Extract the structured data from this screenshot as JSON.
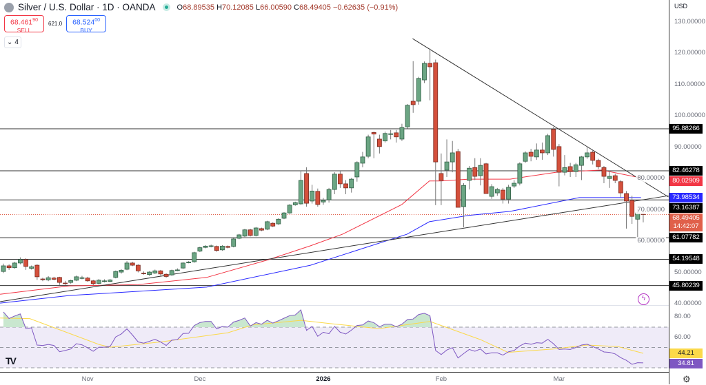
{
  "header": {
    "title": "Silver / U.S. Dollar · 1D · OANDA",
    "o_label": "O",
    "o": "68.89535",
    "h_label": "H",
    "h": "70.12085",
    "l_label": "L",
    "l": "66.00590",
    "c_label": "C",
    "c": "68.49405",
    "change": "−0.62635 (−0.91%)"
  },
  "trade": {
    "sell_price": "68.461",
    "sell_sup": "9",
    "sell_sup2": "0",
    "sell_label": "SELL",
    "spread": "621.0",
    "buy_price": "68.524",
    "buy_sup": "0",
    "buy_sup2": "0",
    "buy_label": "BUY"
  },
  "indicators_toggle": {
    "icon": "chevron-down-icon",
    "count": "4"
  },
  "currency": "USD",
  "colors": {
    "up": "#6ba583",
    "down": "#d4503c",
    "ma_fast": "#f23645",
    "ma_slow": "#2929ff",
    "rsi": "#7e57c2",
    "rsi_ma": "#fbd94a",
    "current": "#e0604a"
  },
  "chart_data": {
    "type": "candlestick",
    "symbol": "Silver / U.S. Dollar",
    "price_ticks": [
      "130.00000",
      "120.00000",
      "110.00000",
      "100.00000",
      "90.00000",
      "80.00000",
      "70.00000",
      "60.00000",
      "50.00000",
      "40.00000"
    ],
    "price_tick_values": [
      130,
      120,
      110,
      100,
      90,
      80,
      70,
      60,
      50,
      40
    ],
    "ylim": [
      40,
      130
    ],
    "time_labels": [
      {
        "label": "Nov",
        "index": 15
      },
      {
        "label": "Dec",
        "index": 35
      },
      {
        "label": "2026",
        "index": 57,
        "bold": true
      },
      {
        "label": "Feb",
        "index": 78
      },
      {
        "label": "Mar",
        "index": 99
      }
    ],
    "candles": [
      [
        50.3,
        52.8,
        49.8,
        52.1
      ],
      [
        52.1,
        52.6,
        50.8,
        51.5
      ],
      [
        51.5,
        53.4,
        51.2,
        53.0
      ],
      [
        53.0,
        54.8,
        52.6,
        54.1
      ],
      [
        54.1,
        54.5,
        50.8,
        51.9
      ],
      [
        51.3,
        52.2,
        50.9,
        51.8
      ],
      [
        52.3,
        52.6,
        47.6,
        48.6
      ],
      [
        47.9,
        48.3,
        47.2,
        47.8
      ],
      [
        47.6,
        48.8,
        47.2,
        48.3
      ],
      [
        48.2,
        48.6,
        47.5,
        47.8
      ],
      [
        48.4,
        48.6,
        46.0,
        46.8
      ],
      [
        46.6,
        47.3,
        46.0,
        46.5
      ],
      [
        46.8,
        47.7,
        46.4,
        47.4
      ],
      [
        47.5,
        49.0,
        47.2,
        48.6
      ],
      [
        48.2,
        48.9,
        47.8,
        48.3
      ],
      [
        48.2,
        48.6,
        47.0,
        47.3
      ],
      [
        47.3,
        47.6,
        45.9,
        46.4
      ],
      [
        46.5,
        47.9,
        46.2,
        47.5
      ],
      [
        47.2,
        47.8,
        46.8,
        47.3
      ],
      [
        47.1,
        47.9,
        46.9,
        47.6
      ],
      [
        48.4,
        50.6,
        48.1,
        50.3
      ],
      [
        50.1,
        51.0,
        49.6,
        50.7
      ],
      [
        51.0,
        53.6,
        50.7,
        53.0
      ],
      [
        53.0,
        53.4,
        52.0,
        52.3
      ],
      [
        52.3,
        52.6,
        50.0,
        50.5
      ],
      [
        49.8,
        50.3,
        49.3,
        49.7
      ],
      [
        49.3,
        50.4,
        48.9,
        50.1
      ],
      [
        49.8,
        50.9,
        49.5,
        50.5
      ],
      [
        50.5,
        50.8,
        49.0,
        49.5
      ],
      [
        49.4,
        49.7,
        48.3,
        48.7
      ],
      [
        49.2,
        50.9,
        48.9,
        50.6
      ],
      [
        50.7,
        51.3,
        50.4,
        50.8
      ],
      [
        51.4,
        53.3,
        51.1,
        53.0
      ],
      [
        53.2,
        53.6,
        52.9,
        53.3
      ],
      [
        53.4,
        56.6,
        53.1,
        56.3
      ],
      [
        56.8,
        58.2,
        56.5,
        57.9
      ],
      [
        58.0,
        58.7,
        57.7,
        58.4
      ],
      [
        58.4,
        58.9,
        58.0,
        58.5
      ],
      [
        58.3,
        58.6,
        56.6,
        57.0
      ],
      [
        57.2,
        58.7,
        56.9,
        58.4
      ],
      [
        58.3,
        58.6,
        57.7,
        58.0
      ],
      [
        58.3,
        61.0,
        58.0,
        60.7
      ],
      [
        60.9,
        62.3,
        60.6,
        62.0
      ],
      [
        61.6,
        63.9,
        61.3,
        63.6
      ],
      [
        63.6,
        63.9,
        61.5,
        61.8
      ],
      [
        61.8,
        64.5,
        61.5,
        64.2
      ],
      [
        64.0,
        64.3,
        63.2,
        63.5
      ],
      [
        63.8,
        66.5,
        63.5,
        66.2
      ],
      [
        65.7,
        66.0,
        64.5,
        64.8
      ],
      [
        65.5,
        67.3,
        65.2,
        67.0
      ],
      [
        67.3,
        69.3,
        67.0,
        69.0
      ],
      [
        69.0,
        71.8,
        68.7,
        71.5
      ],
      [
        71.6,
        72.6,
        71.3,
        72.3
      ],
      [
        71.9,
        82.5,
        71.6,
        79.4
      ],
      [
        81.6,
        83.6,
        71.0,
        72.1
      ],
      [
        72.8,
        78.0,
        72.0,
        76.0
      ],
      [
        75.9,
        76.8,
        71.0,
        71.7
      ],
      [
        72.5,
        73.8,
        71.6,
        73.0
      ],
      [
        73.2,
        77.0,
        72.3,
        76.5
      ],
      [
        76.5,
        82.0,
        75.0,
        81.4
      ],
      [
        81.4,
        82.3,
        77.0,
        78.3
      ],
      [
        78.3,
        79.5,
        75.0,
        77.0
      ],
      [
        77.0,
        80.2,
        75.5,
        79.8
      ],
      [
        80.5,
        85.5,
        79.0,
        85.1
      ],
      [
        84.9,
        88.5,
        83.6,
        86.9
      ],
      [
        87.1,
        94.0,
        86.5,
        93.3
      ],
      [
        94.7,
        95.0,
        86.5,
        94.2
      ],
      [
        92.6,
        94.0,
        88.0,
        90.2
      ],
      [
        92.0,
        95.0,
        91.5,
        94.4
      ],
      [
        94.2,
        95.5,
        92.5,
        94.3
      ],
      [
        94.6,
        95.5,
        91.5,
        93.3
      ],
      [
        92.6,
        97.5,
        92.0,
        96.3
      ],
      [
        96.5,
        103.8,
        96.0,
        103.4
      ],
      [
        104.7,
        117.5,
        101.0,
        103.6
      ],
      [
        104.7,
        112.5,
        103.6,
        112.0
      ],
      [
        111.5,
        117.4,
        110.5,
        116.8
      ],
      [
        116.8,
        121.5,
        105.0,
        115.7
      ],
      [
        117.0,
        118.0,
        71.5,
        85.3
      ],
      [
        81.6,
        88.0,
        71.5,
        79.4
      ],
      [
        82.7,
        92.5,
        80.5,
        85.3
      ],
      [
        85.3,
        92.0,
        82.0,
        88.2
      ],
      [
        88.6,
        89.5,
        70.8,
        70.8
      ],
      [
        71.0,
        78.5,
        64.4,
        77.8
      ],
      [
        79.4,
        84.0,
        76.5,
        83.3
      ],
      [
        83.5,
        86.5,
        79.5,
        80.7
      ],
      [
        80.9,
        86.5,
        77.8,
        84.2
      ],
      [
        84.7,
        85.0,
        75.2,
        75.2
      ],
      [
        74.3,
        78.2,
        73.5,
        77.4
      ],
      [
        75.4,
        77.0,
        74.5,
        76.5
      ],
      [
        76.3,
        77.0,
        72.0,
        73.4
      ],
      [
        73.4,
        78.0,
        72.0,
        77.2
      ],
      [
        77.6,
        79.5,
        77.0,
        78.5
      ],
      [
        78.5,
        85.2,
        77.8,
        84.7
      ],
      [
        85.5,
        88.7,
        85.0,
        88.2
      ],
      [
        88.4,
        89.5,
        85.5,
        87.1
      ],
      [
        86.9,
        91.2,
        86.0,
        89.1
      ],
      [
        89.1,
        91.5,
        86.0,
        88.2
      ],
      [
        88.2,
        94.3,
        87.5,
        93.7
      ],
      [
        95.7,
        96.5,
        87.0,
        89.3
      ],
      [
        90.2,
        91.0,
        77.5,
        82.0
      ],
      [
        82.0,
        87.5,
        81.0,
        83.5
      ],
      [
        83.8,
        85.0,
        80.5,
        82.2
      ],
      [
        82.2,
        85.0,
        80.5,
        84.4
      ],
      [
        84.2,
        87.2,
        79.5,
        86.9
      ],
      [
        86.9,
        90.0,
        86.3,
        88.2
      ],
      [
        88.4,
        89.0,
        84.5,
        85.8
      ],
      [
        85.8,
        86.3,
        83.0,
        83.8
      ],
      [
        83.5,
        84.0,
        78.5,
        80.7
      ],
      [
        80.0,
        82.5,
        77.0,
        80.7
      ],
      [
        80.9,
        81.5,
        78.5,
        79.4
      ],
      [
        79.0,
        79.5,
        74.0,
        75.4
      ],
      [
        75.2,
        76.0,
        64.0,
        72.8
      ],
      [
        73.0,
        74.5,
        65.5,
        67.9
      ],
      [
        67.0,
        70.3,
        61.0,
        69.0
      ],
      [
        68.9,
        70.1,
        66.0,
        68.5
      ]
    ],
    "ma_fast": [
      [
        -0.6,
        43
      ],
      [
        11.7,
        45.7
      ],
      [
        24,
        46.1
      ],
      [
        36.2,
        48.4
      ],
      [
        47.3,
        54.1
      ],
      [
        54.7,
        58.5
      ],
      [
        60.4,
        62.2
      ],
      [
        71,
        71.7
      ],
      [
        75.9,
        79.2
      ],
      [
        78,
        79.2
      ],
      [
        82.9,
        79.8
      ],
      [
        90.3,
        79.8
      ],
      [
        98.5,
        82
      ],
      [
        106.6,
        82.7
      ],
      [
        113.6,
        80.2
      ]
    ],
    "ma_slow": [
      [
        -0.6,
        40.2
      ],
      [
        11.7,
        42.6
      ],
      [
        36.2,
        45.3
      ],
      [
        54.7,
        52.3
      ],
      [
        71.9,
        62.2
      ],
      [
        75.9,
        66.2
      ],
      [
        82.9,
        68.2
      ],
      [
        90.3,
        69.5
      ],
      [
        102.6,
        73.9
      ],
      [
        113.6,
        73.9
      ]
    ],
    "trendlines": [
      {
        "from": [
          -0.6,
          40.65
        ],
        "to": [
          118.5,
          74.5
        ]
      },
      {
        "from": [
          72.9,
          124.7
        ],
        "to": [
          118.5,
          74.1
        ]
      }
    ],
    "levels": [
      {
        "price": 95.88266,
        "label": "95.88266"
      },
      {
        "price": 82.46278,
        "label": "82.46278"
      },
      {
        "price": 73.16387,
        "label": "73.16387"
      },
      {
        "price": 61.07782,
        "label": "61.07782"
      },
      {
        "price": 54.19548,
        "label": "54.19548"
      },
      {
        "price": 45.80239,
        "label": "45.80239"
      }
    ],
    "ma_fast_label": "80.02909",
    "ma_fast_value": 80.02909,
    "ma_slow_label": "73.98534",
    "ma_slow_value": 73.98534,
    "last_price": 68.49405,
    "last_price_label": "68.49405",
    "countdown": "14:42:07",
    "rsi": {
      "ticks": [
        "80.00",
        "60.00"
      ],
      "tick_values": [
        80,
        60
      ],
      "bands": [
        70,
        50,
        30
      ],
      "values": [
        85,
        78.5,
        81,
        83,
        68.6,
        69.3,
        52.4,
        52,
        53,
        52,
        45.8,
        47,
        48.5,
        53.7,
        52.6,
        49.6,
        46.3,
        50.3,
        50.3,
        51,
        60.4,
        63.3,
        68.3,
        62.2,
        55.4,
        54.3,
        56,
        58,
        55.4,
        52,
        57.2,
        57.7,
        63.7,
        64,
        71.6,
        74.5,
        75.6,
        75.6,
        68.3,
        70.7,
        70,
        75,
        76.7,
        79,
        71.1,
        74.5,
        72.9,
        76.7,
        74,
        76.3,
        78.8,
        81.3,
        82,
        87,
        66.8,
        70.7,
        61,
        65,
        63.5,
        70.7,
        65,
        63.2,
        67,
        71.6,
        72.2,
        76,
        74.5,
        70.4,
        72.9,
        72.9,
        70.4,
        72.9,
        77.5,
        78,
        82.5,
        83.6,
        81.3,
        47,
        43,
        47.5,
        49.8,
        39.6,
        44,
        48,
        46.3,
        48.5,
        43.6,
        44.7,
        44.7,
        42.5,
        45.8,
        47,
        51.5,
        54.3,
        53.2,
        54.7,
        54.3,
        58,
        53.7,
        48,
        48.5,
        48,
        50,
        52.4,
        53.2,
        50.9,
        48.5,
        45.6,
        45.2,
        43.6,
        40,
        37.3,
        33.4,
        35,
        34.81
      ],
      "ma": [
        [
          -0.6,
          79
        ],
        [
          4.7,
          78.4
        ],
        [
          17,
          53
        ],
        [
          19,
          50.3
        ],
        [
          28,
          55.4
        ],
        [
          40,
          64.5
        ],
        [
          44.4,
          72.2
        ],
        [
          53,
          76.7
        ],
        [
          58.4,
          73.4
        ],
        [
          66.9,
          68.6
        ],
        [
          76,
          75.6
        ],
        [
          85,
          57.7
        ],
        [
          89.9,
          45.2
        ],
        [
          98,
          48.5
        ],
        [
          104,
          52.4
        ],
        [
          109.5,
          50.9
        ],
        [
          114,
          44.21
        ]
      ],
      "rsi_label": "34.81",
      "ma_label": "44.21"
    }
  }
}
